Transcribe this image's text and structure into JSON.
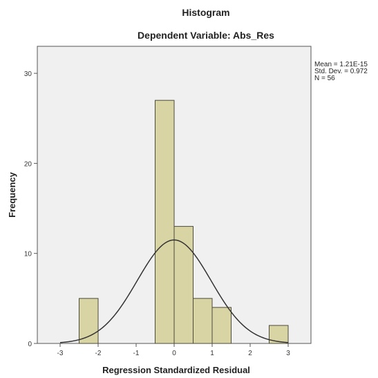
{
  "chart_data": {
    "type": "bar",
    "title": "Histogram",
    "subtitle": "Dependent Variable: Abs_Res",
    "xlabel": "Regression Standardized Residual",
    "ylabel": "Frequency",
    "xlim": [
      -3.6,
      3.6
    ],
    "ylim": [
      0,
      33
    ],
    "x_ticks": [
      "-3",
      "-2",
      "-1",
      "0",
      "1",
      "2",
      "3"
    ],
    "y_ticks": [
      "0",
      "10",
      "20",
      "30"
    ],
    "bins": [
      {
        "start": -2.5,
        "end": -2.0,
        "count": 5
      },
      {
        "start": -0.5,
        "end": 0.0,
        "count": 27
      },
      {
        "start": 0.0,
        "end": 0.5,
        "count": 13
      },
      {
        "start": 0.5,
        "end": 1.0,
        "count": 5
      },
      {
        "start": 1.0,
        "end": 1.5,
        "count": 4
      },
      {
        "start": 2.5,
        "end": 3.0,
        "count": 2
      }
    ],
    "normal_curve": {
      "mean": 0,
      "sd": 0.972,
      "n": 56,
      "bin_width": 0.5
    },
    "stats": [
      "Mean = 1.21E-15",
      "Std. Dev. = 0.972",
      "N = 56"
    ],
    "grid": false,
    "colors": {
      "bar_fill": "#d8d4a4",
      "bar_stroke": "#4a4a3a",
      "plot_bg": "#f0f0f0",
      "curve": "#333333"
    }
  }
}
